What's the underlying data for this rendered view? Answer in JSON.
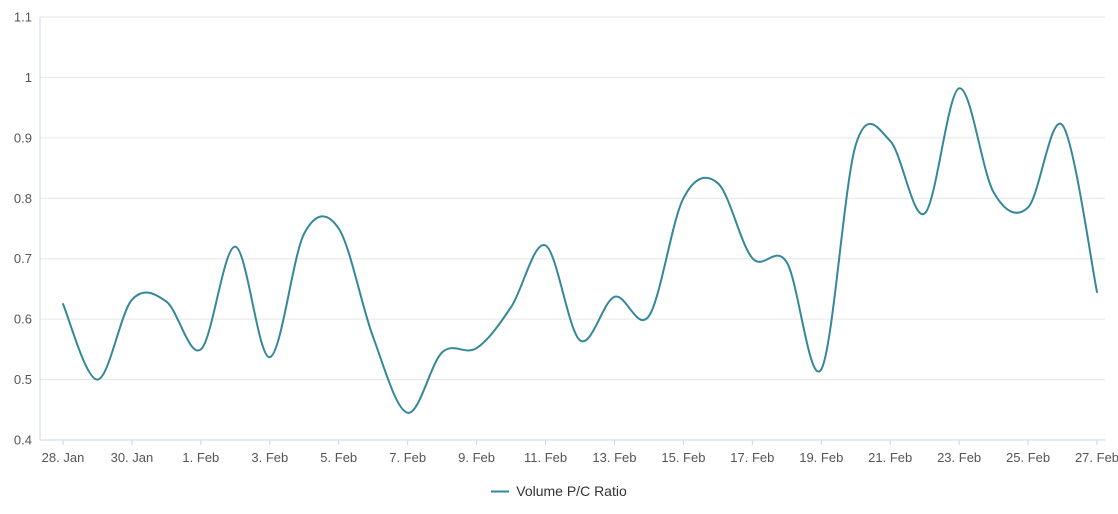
{
  "chart_data": {
    "type": "line",
    "curve": "spline",
    "title": "",
    "xlabel": "",
    "ylabel": "",
    "grid": "horizontal",
    "categories": [
      "28. Jan",
      "29. Jan",
      "30. Jan",
      "31. Jan",
      "1. Feb",
      "2. Feb",
      "3. Feb",
      "4. Feb",
      "5. Feb",
      "6. Feb",
      "7. Feb",
      "8. Feb",
      "9. Feb",
      "10. Feb",
      "11. Feb",
      "12. Feb",
      "13. Feb",
      "14. Feb",
      "15. Feb",
      "16. Feb",
      "17. Feb",
      "18. Feb",
      "19. Feb",
      "20. Feb",
      "21. Feb",
      "22. Feb",
      "23. Feb",
      "24. Feb",
      "25. Feb",
      "26. Feb",
      "27. Feb"
    ],
    "x_tick_interval": 2,
    "x_tick_labels": [
      "28. Jan",
      "30. Jan",
      "1. Feb",
      "3. Feb",
      "5. Feb",
      "7. Feb",
      "9. Feb",
      "11. Feb",
      "13. Feb",
      "15. Feb",
      "17. Feb",
      "19. Feb",
      "21. Feb",
      "23. Feb",
      "25. Feb",
      "27. Feb"
    ],
    "ylim": [
      0.4,
      1.1
    ],
    "y_ticks": [
      0.4,
      0.5,
      0.6,
      0.7,
      0.8,
      0.9,
      1,
      1.1
    ],
    "y_tick_labels": [
      "0.4",
      "0.5",
      "0.6",
      "0.7",
      "0.8",
      "0.9",
      "1",
      "1.1"
    ],
    "series": [
      {
        "name": "Volume P/C Ratio",
        "color": "#35879b",
        "values": [
          0.625,
          0.5,
          0.632,
          0.629,
          0.55,
          0.72,
          0.537,
          0.742,
          0.75,
          0.57,
          0.445,
          0.545,
          0.552,
          0.62,
          0.722,
          0.565,
          0.637,
          0.605,
          0.8,
          0.825,
          0.701,
          0.694,
          0.517,
          0.888,
          0.895,
          0.775,
          0.982,
          0.81,
          0.785,
          0.921,
          0.645
        ]
      }
    ],
    "legend": {
      "position": "bottom-center",
      "label": "Volume P/C Ratio"
    }
  },
  "colors": {
    "line": "#35879b",
    "grid": "#e6e6e6",
    "axis": "#ccd6eb",
    "axis_label": "#555555",
    "legend_text": "#333333",
    "background": "#ffffff"
  }
}
